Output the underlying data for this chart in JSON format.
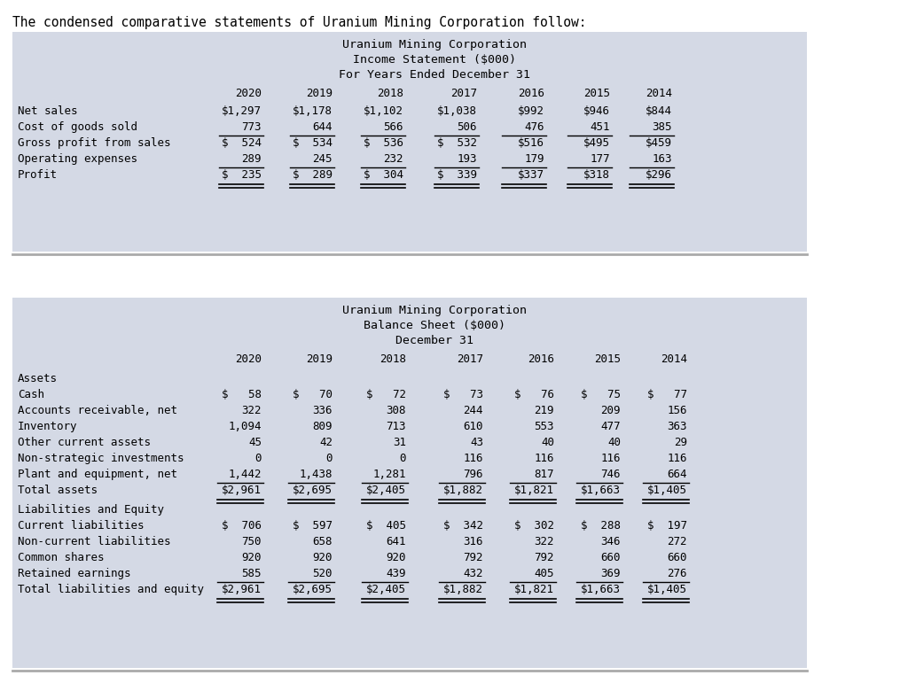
{
  "title_text": "The condensed comparative statements of Uranium Mining Corporation follow:",
  "bg_color": "#ffffff",
  "table_bg": "#d4d9e5",
  "income_title": [
    "Uranium Mining Corporation",
    "Income Statement ($000)",
    "For Years Ended December 31"
  ],
  "balance_title": [
    "Uranium Mining Corporation",
    "Balance Sheet ($000)",
    "December 31"
  ],
  "years": [
    "2020",
    "2019",
    "2018",
    "2017",
    "2016",
    "2015",
    "2014"
  ],
  "income_rows": [
    {
      "label": "Net sales",
      "values": [
        "$1,297",
        "$1,178",
        "$1,102",
        "$1,038",
        "$992",
        "$946",
        "$844"
      ],
      "underline_above": false,
      "double_underline": false
    },
    {
      "label": "Cost of goods sold",
      "values": [
        "773",
        "644",
        "566",
        "506",
        "476",
        "451",
        "385"
      ],
      "underline_above": false,
      "double_underline": false,
      "underline_below": true
    },
    {
      "label": "Gross profit from sales",
      "values": [
        "$  524",
        "$  534",
        "$  536",
        "$  532",
        "$516",
        "$495",
        "$459"
      ],
      "underline_above": false,
      "double_underline": false
    },
    {
      "label": "Operating expenses",
      "values": [
        "289",
        "245",
        "232",
        "193",
        "179",
        "177",
        "163"
      ],
      "underline_above": false,
      "double_underline": false,
      "underline_below": true
    },
    {
      "label": "Profit",
      "values": [
        "$  235",
        "$  289",
        "$  304",
        "$  339",
        "$337",
        "$318",
        "$296"
      ],
      "underline_above": false,
      "double_underline": true
    }
  ],
  "assets_rows": [
    {
      "label": "Cash",
      "values": [
        "$   58",
        "$   70",
        "$   72",
        "$   73",
        "$   76",
        "$   75",
        "$   77"
      ],
      "underline_below": false
    },
    {
      "label": "Accounts receivable, net",
      "values": [
        "322",
        "336",
        "308",
        "244",
        "219",
        "209",
        "156"
      ],
      "underline_below": false
    },
    {
      "label": "Inventory",
      "values": [
        "1,094",
        "809",
        "713",
        "610",
        "553",
        "477",
        "363"
      ],
      "underline_below": false
    },
    {
      "label": "Other current assets",
      "values": [
        "45",
        "42",
        "31",
        "43",
        "40",
        "40",
        "29"
      ],
      "underline_below": false
    },
    {
      "label": "Non-strategic investments",
      "values": [
        "0",
        "0",
        "0",
        "116",
        "116",
        "116",
        "116"
      ],
      "underline_below": false
    },
    {
      "label": "Plant and equipment, net",
      "values": [
        "1,442",
        "1,438",
        "1,281",
        "796",
        "817",
        "746",
        "664"
      ],
      "underline_below": true
    }
  ],
  "assets_total": {
    "label": "Total assets",
    "values": [
      "$2,961",
      "$2,695",
      "$2,405",
      "$1,882",
      "$1,821",
      "$1,663",
      "$1,405"
    ]
  },
  "liab_rows": [
    {
      "label": "Current liabilities",
      "values": [
        "$  706",
        "$  597",
        "$  405",
        "$  342",
        "$  302",
        "$  288",
        "$  197"
      ],
      "underline_below": false
    },
    {
      "label": "Non-current liabilities",
      "values": [
        "750",
        "658",
        "641",
        "316",
        "322",
        "346",
        "272"
      ],
      "underline_below": false
    },
    {
      "label": "Common shares",
      "values": [
        "920",
        "920",
        "920",
        "792",
        "792",
        "660",
        "660"
      ],
      "underline_below": false
    },
    {
      "label": "Retained earnings",
      "values": [
        "585",
        "520",
        "439",
        "432",
        "405",
        "369",
        "276"
      ],
      "underline_below": true
    }
  ],
  "liab_total": {
    "label": "Total liabilities and equity",
    "values": [
      "$2,961",
      "$2,695",
      "$2,405",
      "$1,882",
      "$1,821",
      "$1,663",
      "$1,405"
    ]
  }
}
